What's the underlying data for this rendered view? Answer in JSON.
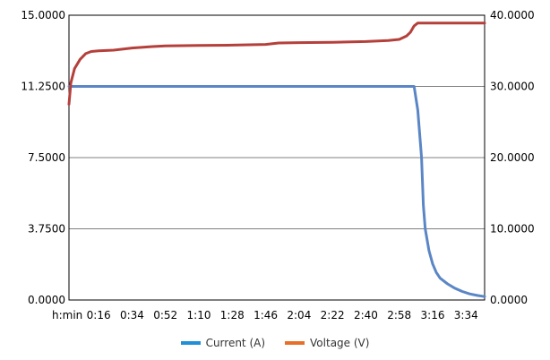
{
  "chart_data": {
    "type": "line",
    "title": "",
    "xlabel": "h:min",
    "x_ticks": [
      "0:16",
      "0:34",
      "0:52",
      "1:10",
      "1:28",
      "1:46",
      "2:04",
      "2:22",
      "2:40",
      "2:58",
      "3:16",
      "3:34"
    ],
    "xlim": [
      "0:00",
      "3:44"
    ],
    "y_left": {
      "ticks": [
        "0.0000",
        "3.7500",
        "7.5000",
        "11.2500",
        "15.0000"
      ],
      "ylim": [
        0,
        15
      ]
    },
    "y_right": {
      "ticks": [
        "0.0000",
        "10.0000",
        "20.0000",
        "30.0000",
        "40.0000"
      ],
      "ylim": [
        0,
        40
      ]
    },
    "grid": true,
    "legend_position": "bottom",
    "series": [
      {
        "name": "Current (A)",
        "axis": "left",
        "line_color": "#5b86c5",
        "legend_color": "#1f8fd6",
        "points": [
          [
            "0:00",
            11.25
          ],
          [
            "3:06",
            11.25
          ],
          [
            "3:08",
            10.0
          ],
          [
            "3:10",
            7.5
          ],
          [
            "3:11",
            5.0
          ],
          [
            "3:12",
            3.75
          ],
          [
            "3:14",
            2.6
          ],
          [
            "3:16",
            1.9
          ],
          [
            "3:18",
            1.45
          ],
          [
            "3:20",
            1.15
          ],
          [
            "3:24",
            0.85
          ],
          [
            "3:28",
            0.62
          ],
          [
            "3:32",
            0.45
          ],
          [
            "3:36",
            0.32
          ],
          [
            "3:40",
            0.24
          ],
          [
            "3:44",
            0.18
          ]
        ]
      },
      {
        "name": "Voltage (V)",
        "axis": "right",
        "line_color": "#b5403b",
        "legend_color": "#e86f2a",
        "points": [
          [
            "0:00",
            27.5
          ],
          [
            "0:01",
            30.5
          ],
          [
            "0:03",
            32.5
          ],
          [
            "0:06",
            33.8
          ],
          [
            "0:09",
            34.6
          ],
          [
            "0:12",
            34.9
          ],
          [
            "0:16",
            35.0
          ],
          [
            "0:24",
            35.1
          ],
          [
            "0:34",
            35.4
          ],
          [
            "0:45",
            35.6
          ],
          [
            "0:52",
            35.7
          ],
          [
            "1:10",
            35.75
          ],
          [
            "1:28",
            35.8
          ],
          [
            "1:46",
            35.9
          ],
          [
            "1:53",
            36.1
          ],
          [
            "2:04",
            36.15
          ],
          [
            "2:22",
            36.2
          ],
          [
            "2:40",
            36.3
          ],
          [
            "2:52",
            36.45
          ],
          [
            "2:58",
            36.6
          ],
          [
            "3:02",
            37.1
          ],
          [
            "3:04",
            37.6
          ],
          [
            "3:06",
            38.5
          ],
          [
            "3:08",
            38.9
          ],
          [
            "3:16",
            38.9
          ],
          [
            "3:34",
            38.9
          ],
          [
            "3:44",
            38.9
          ]
        ]
      }
    ]
  }
}
